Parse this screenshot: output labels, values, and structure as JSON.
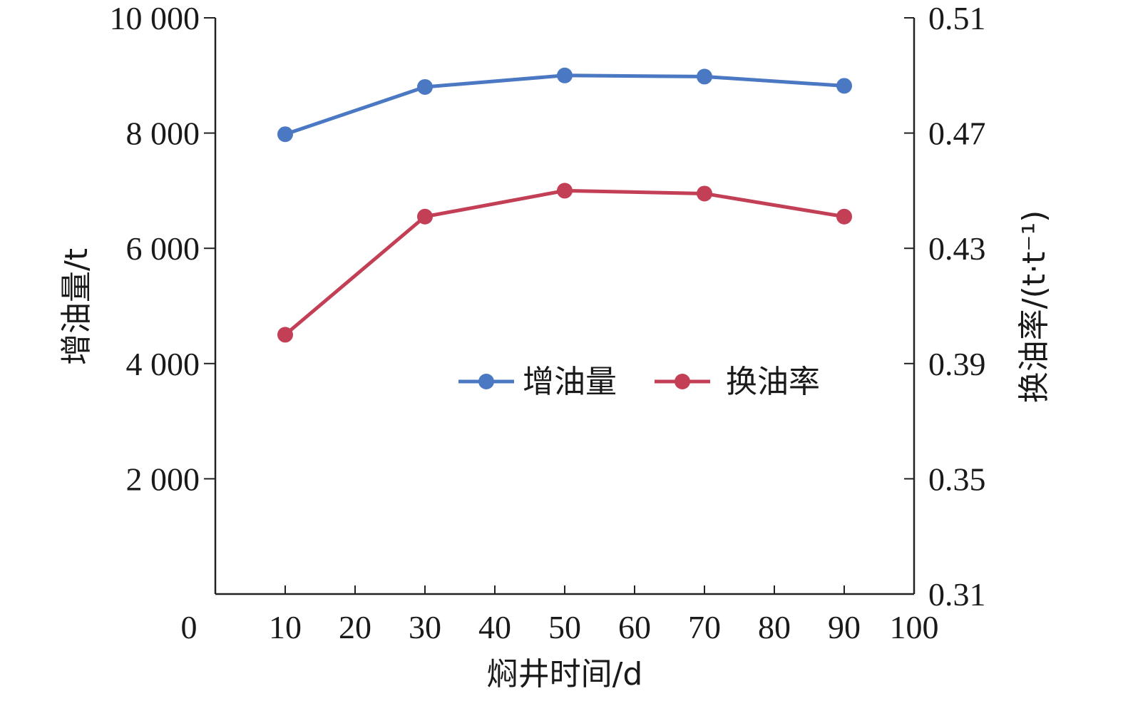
{
  "chart_data": {
    "type": "line",
    "xlabel": "焖井时间/d",
    "ylabel_left": "增油量/t",
    "ylabel_right": "换油率/(t·t⁻¹)",
    "xlim": [
      0,
      100
    ],
    "x_ticks": [
      10,
      20,
      30,
      40,
      50,
      60,
      70,
      80,
      90,
      100
    ],
    "origin_label": "0",
    "ylim_left": [
      0,
      10000
    ],
    "y_ticks_left": [
      2000,
      4000,
      6000,
      8000,
      10000
    ],
    "y_tick_labels_left": [
      "2 000",
      "4 000",
      "6 000",
      "8 000",
      "10 000"
    ],
    "ylim_right": [
      0.31,
      0.51
    ],
    "y_ticks_right": [
      0.31,
      0.35,
      0.39,
      0.43,
      0.47,
      0.51
    ],
    "y_tick_labels_right": [
      "0.31",
      "0.35",
      "0.39",
      "0.43",
      "0.47",
      "0.51"
    ],
    "legend_position": "center-right",
    "grid": false,
    "x": [
      10,
      30,
      50,
      70,
      90
    ],
    "series": [
      {
        "name": "增油量",
        "axis": "left",
        "color": "#4a78c2",
        "values": [
          7980,
          8800,
          9000,
          8980,
          8820
        ]
      },
      {
        "name": "换油率",
        "axis": "right",
        "color": "#c33f55",
        "values": [
          0.4,
          0.441,
          0.45,
          0.449,
          0.441
        ]
      }
    ]
  }
}
